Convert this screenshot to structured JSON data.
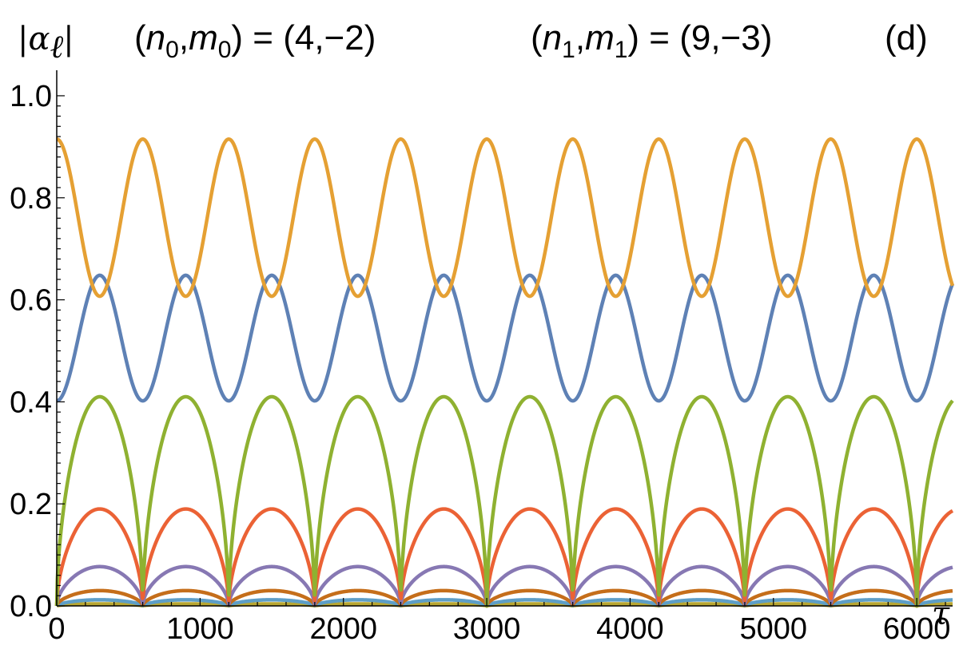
{
  "chart_data": {
    "type": "line",
    "title_parts": {
      "ylabel_main": "|α",
      "ylabel_sub": "ℓ",
      "ylabel_end": "|",
      "n0_open": "(",
      "n0_n": "n",
      "n0_nsub": "0",
      "n0_comma": ",",
      "n0_m": "m",
      "n0_msub": "0",
      "n0_rest": ") = (4,−2)",
      "n1_open": "(",
      "n1_n": "n",
      "n1_nsub": "1",
      "n1_comma": ",",
      "n1_m": "m",
      "n1_msub": "1",
      "n1_rest": ") = (9,−3)",
      "panel": "(d)"
    },
    "xlabel": "τ",
    "xlim": [
      0,
      6250
    ],
    "ylim": [
      0,
      1.05
    ],
    "x_ticks": [
      "0",
      "1000",
      "2000",
      "3000",
      "4000",
      "5000",
      "6000"
    ],
    "y_ticks": [
      "0.0",
      "0.2",
      "0.4",
      "0.6",
      "0.8",
      "1.0"
    ],
    "grid": false,
    "period": 600,
    "series": [
      {
        "color": "#E5A033",
        "shape": "cosine",
        "y_max": 0.915,
        "y_min": 0.607,
        "phase": "max-at-0"
      },
      {
        "color": "#5E81B5",
        "shape": "cosine",
        "y_max": 0.648,
        "y_min": 0.402,
        "phase": "min-at-0"
      },
      {
        "color": "#8FB131",
        "shape": "arch",
        "y_max": 0.41,
        "y_min": 0.0
      },
      {
        "color": "#EB6235",
        "shape": "arch",
        "y_max": 0.19,
        "y_min": 0.0
      },
      {
        "color": "#8778B3",
        "shape": "arch",
        "y_max": 0.077,
        "y_min": 0.0
      },
      {
        "color": "#C56E1A",
        "shape": "arch",
        "y_max": 0.03,
        "y_min": 0.0
      },
      {
        "color": "#5D9EC7",
        "shape": "arch",
        "y_max": 0.012,
        "y_min": 0.0
      },
      {
        "color": "#B8A631",
        "shape": "arch",
        "y_max": 0.004,
        "y_min": 0.0
      }
    ]
  }
}
